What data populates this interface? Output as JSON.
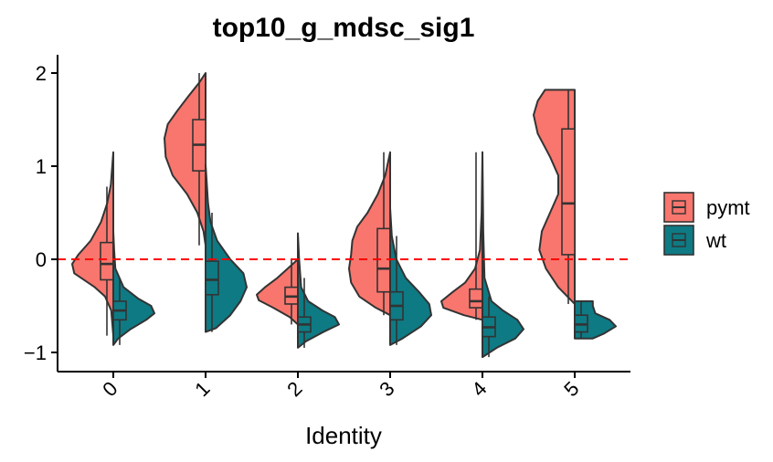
{
  "chart_data": {
    "type": "split-violin",
    "title": "top10_g_mdsc_sig1",
    "xlabel": "Identity",
    "ylabel": "",
    "categories": [
      "0",
      "1",
      "2",
      "3",
      "4",
      "5"
    ],
    "ylim": [
      -1.2,
      2.1
    ],
    "yticks": [
      -1,
      0,
      1,
      2
    ],
    "ytick_labels": [
      "−1",
      "0",
      "1",
      "2"
    ],
    "x_tick_rotation": 45,
    "reference_line": {
      "y": 0,
      "style": "dashed",
      "color": "#ff0000"
    },
    "legend": {
      "position": "right",
      "items": [
        "pymt",
        "wt"
      ]
    },
    "series": [
      {
        "name": "pymt",
        "color": "#f8766d",
        "side": "left",
        "groups": [
          {
            "category": "0",
            "min": -0.82,
            "max": 1.15,
            "q1": -0.22,
            "median": -0.05,
            "q3": 0.18,
            "whisker_low": -0.82,
            "whisker_high": 0.78,
            "density": [
              [
                -0.82,
                0.0
              ],
              [
                -0.55,
                0.05
              ],
              [
                -0.4,
                0.2
              ],
              [
                -0.3,
                0.45
              ],
              [
                -0.15,
                0.95
              ],
              [
                -0.05,
                1.0
              ],
              [
                0.05,
                0.85
              ],
              [
                0.2,
                0.55
              ],
              [
                0.4,
                0.3
              ],
              [
                0.6,
                0.15
              ],
              [
                0.8,
                0.06
              ],
              [
                1.15,
                0.0
              ]
            ]
          },
          {
            "category": "1",
            "min": 0.15,
            "max": 2.0,
            "q1": 0.95,
            "median": 1.23,
            "q3": 1.5,
            "whisker_low": 0.15,
            "whisker_high": 2.0,
            "density": [
              [
                0.15,
                0.0
              ],
              [
                0.3,
                0.05
              ],
              [
                0.5,
                0.2
              ],
              [
                0.7,
                0.45
              ],
              [
                0.9,
                0.8
              ],
              [
                1.1,
                0.97
              ],
              [
                1.3,
                1.0
              ],
              [
                1.45,
                0.92
              ],
              [
                1.6,
                0.68
              ],
              [
                1.75,
                0.42
              ],
              [
                1.9,
                0.15
              ],
              [
                2.0,
                0.0
              ]
            ]
          },
          {
            "category": "2",
            "min": -0.7,
            "max": 0.0,
            "q1": -0.48,
            "median": -0.4,
            "q3": -0.3,
            "whisker_low": -0.7,
            "whisker_high": 0.0,
            "density": [
              [
                -0.7,
                0.0
              ],
              [
                -0.62,
                0.2
              ],
              [
                -0.52,
                0.6
              ],
              [
                -0.44,
                0.95
              ],
              [
                -0.38,
                1.0
              ],
              [
                -0.3,
                0.8
              ],
              [
                -0.2,
                0.5
              ],
              [
                -0.1,
                0.25
              ],
              [
                0.0,
                0.0
              ]
            ]
          },
          {
            "category": "3",
            "min": -0.6,
            "max": 1.15,
            "q1": -0.35,
            "median": -0.1,
            "q3": 0.33,
            "whisker_low": -0.6,
            "whisker_high": 1.15,
            "density": [
              [
                -0.6,
                0.0
              ],
              [
                -0.52,
                0.35
              ],
              [
                -0.4,
                0.75
              ],
              [
                -0.25,
                0.95
              ],
              [
                -0.1,
                1.0
              ],
              [
                0.05,
                0.95
              ],
              [
                0.2,
                0.92
              ],
              [
                0.35,
                0.8
              ],
              [
                0.5,
                0.55
              ],
              [
                0.7,
                0.3
              ],
              [
                0.9,
                0.12
              ],
              [
                1.15,
                0.0
              ]
            ]
          },
          {
            "category": "4",
            "min": -0.65,
            "max": 1.15,
            "q1": -0.52,
            "median": -0.45,
            "q3": -0.32,
            "whisker_low": -0.65,
            "whisker_high": 1.15,
            "density": [
              [
                -0.65,
                0.0
              ],
              [
                -0.6,
                0.45
              ],
              [
                -0.52,
                0.95
              ],
              [
                -0.45,
                1.0
              ],
              [
                -0.35,
                0.72
              ],
              [
                -0.25,
                0.42
              ],
              [
                -0.1,
                0.18
              ],
              [
                0.1,
                0.06
              ],
              [
                0.5,
                0.02
              ],
              [
                1.15,
                0.0
              ]
            ]
          },
          {
            "category": "5",
            "min": -0.48,
            "max": 1.82,
            "q1": 0.05,
            "median": 0.6,
            "q3": 1.4,
            "whisker_low": -0.48,
            "whisker_high": 1.82,
            "density": [
              [
                -0.48,
                0.0
              ],
              [
                -0.3,
                0.4
              ],
              [
                -0.1,
                0.7
              ],
              [
                0.1,
                0.86
              ],
              [
                0.3,
                0.8
              ],
              [
                0.5,
                0.6
              ],
              [
                0.7,
                0.4
              ],
              [
                0.9,
                0.4
              ],
              [
                1.1,
                0.6
              ],
              [
                1.35,
                0.9
              ],
              [
                1.55,
                1.0
              ],
              [
                1.7,
                0.9
              ],
              [
                1.82,
                0.72
              ]
            ]
          }
        ]
      },
      {
        "name": "wt",
        "color": "#0e7a84",
        "side": "right",
        "groups": [
          {
            "category": "0",
            "min": -0.92,
            "max": 0.3,
            "q1": -0.65,
            "median": -0.55,
            "q3": -0.45,
            "whisker_low": -0.92,
            "whisker_high": -0.2,
            "density": [
              [
                -0.92,
                0.0
              ],
              [
                -0.85,
                0.12
              ],
              [
                -0.75,
                0.42
              ],
              [
                -0.65,
                0.8
              ],
              [
                -0.58,
                1.0
              ],
              [
                -0.5,
                0.92
              ],
              [
                -0.42,
                0.6
              ],
              [
                -0.3,
                0.25
              ],
              [
                -0.1,
                0.05
              ],
              [
                0.1,
                0.02
              ],
              [
                0.3,
                0.0
              ]
            ]
          },
          {
            "category": "1",
            "min": -0.78,
            "max": 1.02,
            "q1": -0.38,
            "median": -0.22,
            "q3": -0.02,
            "whisker_low": -0.78,
            "whisker_high": 0.5,
            "density": [
              [
                -0.78,
                0.0
              ],
              [
                -0.74,
                0.25
              ],
              [
                -0.6,
                0.6
              ],
              [
                -0.45,
                0.85
              ],
              [
                -0.3,
                1.0
              ],
              [
                -0.15,
                0.92
              ],
              [
                0.0,
                0.6
              ],
              [
                0.2,
                0.28
              ],
              [
                0.4,
                0.12
              ],
              [
                0.6,
                0.06
              ],
              [
                1.02,
                0.0
              ]
            ]
          },
          {
            "category": "2",
            "min": -0.95,
            "max": 0.28,
            "q1": -0.78,
            "median": -0.7,
            "q3": -0.62,
            "whisker_low": -0.95,
            "whisker_high": -0.2,
            "density": [
              [
                -0.95,
                0.0
              ],
              [
                -0.88,
                0.2
              ],
              [
                -0.78,
                0.62
              ],
              [
                -0.7,
                1.0
              ],
              [
                -0.62,
                0.9
              ],
              [
                -0.55,
                0.6
              ],
              [
                -0.45,
                0.25
              ],
              [
                -0.3,
                0.08
              ],
              [
                0.0,
                0.03
              ],
              [
                0.28,
                0.0
              ]
            ]
          },
          {
            "category": "3",
            "min": -0.92,
            "max": 0.55,
            "q1": -0.65,
            "median": -0.5,
            "q3": -0.35,
            "whisker_low": -0.92,
            "whisker_high": 0.25,
            "density": [
              [
                -0.92,
                0.0
              ],
              [
                -0.85,
                0.3
              ],
              [
                -0.72,
                0.75
              ],
              [
                -0.6,
                1.0
              ],
              [
                -0.48,
                0.95
              ],
              [
                -0.35,
                0.7
              ],
              [
                -0.2,
                0.38
              ],
              [
                0.0,
                0.15
              ],
              [
                0.25,
                0.04
              ],
              [
                0.55,
                0.0
              ]
            ]
          },
          {
            "category": "4",
            "min": -1.05,
            "max": 1.15,
            "q1": -0.83,
            "median": -0.73,
            "q3": -0.62,
            "whisker_low": -1.05,
            "whisker_high": -0.4,
            "density": [
              [
                -1.05,
                0.0
              ],
              [
                -0.95,
                0.35
              ],
              [
                -0.85,
                0.8
              ],
              [
                -0.75,
                1.0
              ],
              [
                -0.65,
                0.85
              ],
              [
                -0.55,
                0.5
              ],
              [
                -0.45,
                0.22
              ],
              [
                -0.2,
                0.05
              ],
              [
                0.3,
                0.02
              ],
              [
                1.15,
                0.0
              ]
            ]
          },
          {
            "category": "5",
            "min": -0.85,
            "max": -0.45,
            "q1": -0.78,
            "median": -0.7,
            "q3": -0.6,
            "whisker_low": -0.85,
            "whisker_high": -0.45,
            "density": [
              [
                -0.85,
                0.44
              ],
              [
                -0.8,
                0.7
              ],
              [
                -0.72,
                1.0
              ],
              [
                -0.65,
                0.85
              ],
              [
                -0.58,
                0.5
              ],
              [
                -0.5,
                0.44
              ],
              [
                -0.45,
                0.44
              ]
            ]
          }
        ]
      }
    ]
  }
}
